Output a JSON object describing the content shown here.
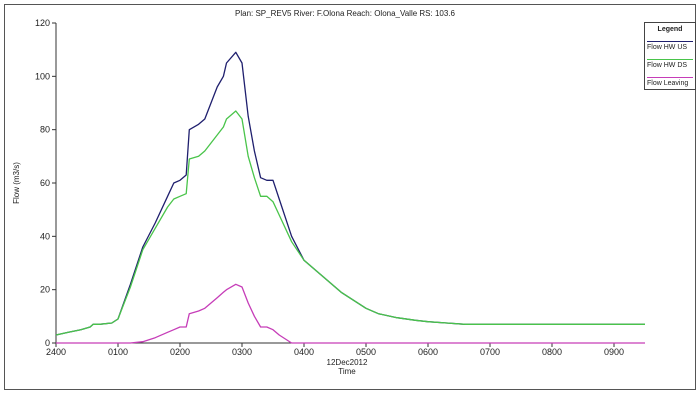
{
  "chart_data": {
    "type": "line",
    "title": "Plan: SP_REV5   River: F.Olona   Reach: Olona_Valle   RS: 103.6",
    "xlabel": "Time",
    "xlabel_date": "12Dec2012",
    "ylabel": "Flow (m3/s)",
    "ylim": [
      0,
      120
    ],
    "yticks": [
      "0",
      "20",
      "40",
      "60",
      "80",
      "100",
      "120"
    ],
    "xlim": [
      0,
      9.5
    ],
    "xtick_values": [
      0,
      1,
      2,
      3,
      4,
      5,
      6,
      7,
      8,
      9
    ],
    "xtick_labels": [
      "2400",
      "0100",
      "0200",
      "0300",
      "0400",
      "0500",
      "0600",
      "0700",
      "0800",
      "0900"
    ],
    "grid": false,
    "legend_title": "Legend",
    "legend_position": "top-right",
    "series": [
      {
        "name": "Flow HW US",
        "color": "#1f1f6e",
        "x": [
          0,
          0.2,
          0.4,
          0.55,
          0.6,
          0.7,
          0.9,
          1.0,
          1.2,
          1.4,
          1.6,
          1.8,
          1.9,
          2.0,
          2.1,
          2.15,
          2.3,
          2.4,
          2.5,
          2.6,
          2.7,
          2.75,
          2.9,
          3.0,
          3.1,
          3.2,
          3.3,
          3.4,
          3.5,
          3.6,
          3.8,
          4.0,
          4.3,
          4.6,
          4.8,
          5.0,
          5.2,
          5.5,
          5.8,
          6.0,
          6.3,
          6.6,
          7.0,
          8.0,
          9.0,
          9.5
        ],
        "y": [
          3,
          4,
          5,
          6,
          7,
          7,
          7.5,
          9,
          22,
          36,
          45,
          55,
          60,
          61,
          63,
          80,
          82,
          84,
          90,
          96,
          100,
          105,
          109,
          105,
          85,
          72,
          62,
          61,
          61,
          54,
          40,
          31,
          25,
          19,
          16,
          13,
          11,
          9.5,
          8.5,
          8,
          7.5,
          7,
          7,
          7,
          7,
          7
        ]
      },
      {
        "name": "Flow HW DS",
        "color": "#49c44a",
        "x": [
          0,
          0.2,
          0.4,
          0.55,
          0.6,
          0.7,
          0.9,
          1.0,
          1.2,
          1.4,
          1.6,
          1.8,
          1.9,
          2.0,
          2.1,
          2.15,
          2.3,
          2.4,
          2.5,
          2.6,
          2.7,
          2.75,
          2.9,
          3.0,
          3.1,
          3.2,
          3.3,
          3.4,
          3.5,
          3.6,
          3.8,
          4.0,
          4.3,
          4.6,
          4.8,
          5.0,
          5.2,
          5.5,
          5.8,
          6.0,
          6.3,
          6.6,
          7.0,
          8.0,
          9.0,
          9.5
        ],
        "y": [
          3,
          4,
          5,
          6,
          7,
          7,
          7.5,
          9,
          21,
          35,
          43,
          51,
          54,
          55,
          56,
          69,
          70,
          72,
          75,
          78,
          81,
          84,
          87,
          84,
          70,
          62,
          55,
          55,
          53,
          48,
          38,
          31,
          25,
          19,
          16,
          13,
          11,
          9.5,
          8.5,
          8,
          7.5,
          7,
          7,
          7,
          7,
          7
        ]
      },
      {
        "name": "Flow Leaving",
        "color": "#c63db8",
        "x": [
          0,
          1.2,
          1.4,
          1.6,
          1.8,
          1.9,
          2.0,
          2.1,
          2.15,
          2.3,
          2.4,
          2.5,
          2.6,
          2.7,
          2.75,
          2.9,
          3.0,
          3.1,
          3.2,
          3.3,
          3.4,
          3.5,
          3.6,
          3.7,
          3.8,
          4.0,
          9.5
        ],
        "y": [
          0,
          0,
          0.5,
          2,
          4,
          5,
          6,
          6,
          11,
          12,
          13,
          15,
          17,
          19,
          20,
          22,
          21,
          15,
          10,
          6,
          6,
          5,
          3,
          1.5,
          0,
          0,
          0
        ]
      }
    ]
  }
}
